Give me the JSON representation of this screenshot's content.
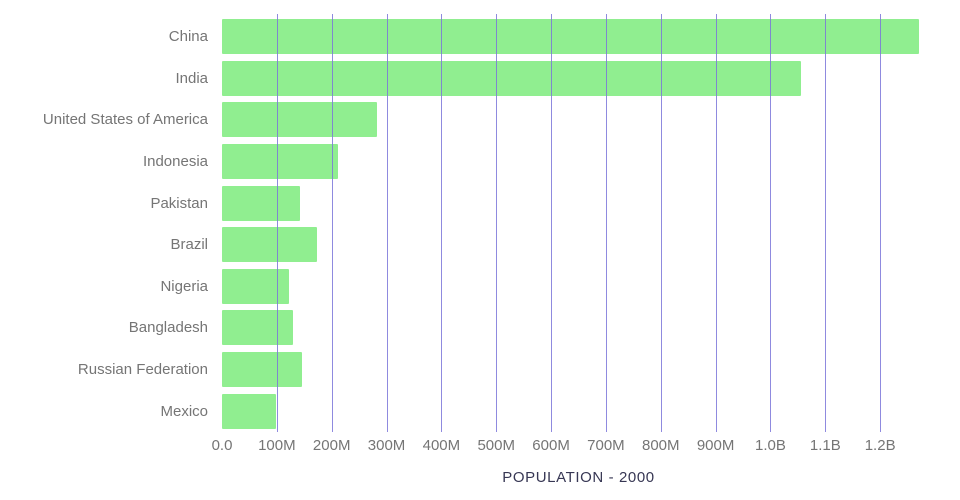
{
  "chart_data": {
    "type": "bar",
    "orientation": "horizontal",
    "title": "POPULATION - 2000",
    "categories": [
      "China",
      "India",
      "United States of America",
      "Indonesia",
      "Pakistan",
      "Brazil",
      "Nigeria",
      "Bangladesh",
      "Russian Federation",
      "Mexico"
    ],
    "values_millions": [
      1270,
      1055,
      282,
      212,
      142,
      174,
      122,
      129,
      146,
      98
    ],
    "x_axis": {
      "min": 0,
      "max_millions": 1300,
      "tick_values_millions": [
        0,
        100,
        200,
        300,
        400,
        500,
        600,
        700,
        800,
        900,
        1000,
        1100,
        1200
      ],
      "tick_labels": [
        "0.0",
        "100M",
        "200M",
        "300M",
        "400M",
        "500M",
        "600M",
        "700M",
        "800M",
        "900M",
        "1.0B",
        "1.1B",
        "1.2B"
      ]
    },
    "grid": "vertical",
    "legend": "none",
    "colors": {
      "bar": "#90ee90",
      "gridline": "#7b76d9",
      "tick_text": "#757575",
      "label_text": "#757575",
      "title_text": "#373754",
      "background": "#ffffff"
    }
  }
}
